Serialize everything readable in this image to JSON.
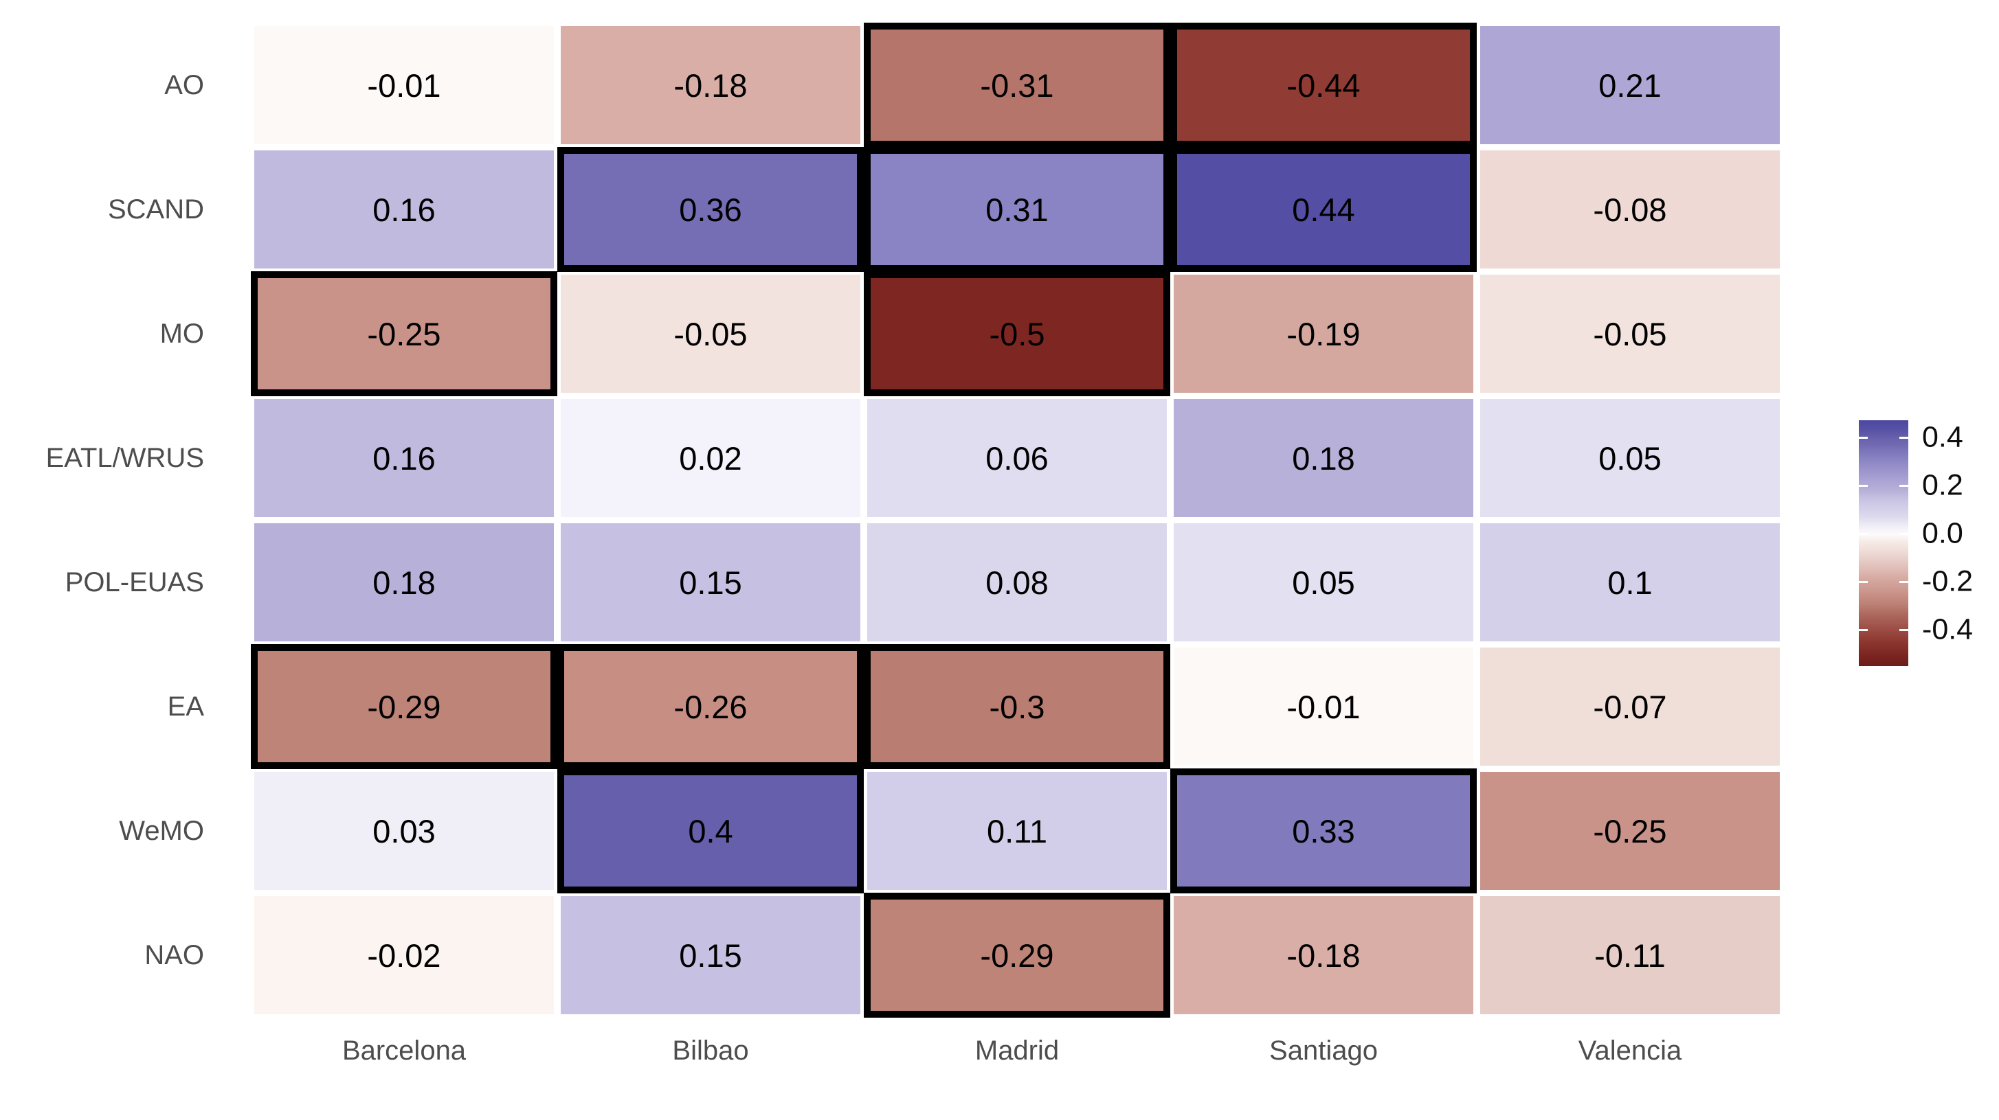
{
  "chart_data": {
    "type": "heatmap",
    "title": "",
    "xlabel": "",
    "ylabel": "",
    "grid": false,
    "legend_position": "right",
    "rows": [
      "AO",
      "SCAND",
      "MO",
      "EATL/WRUS",
      "POL-EUAS",
      "EA",
      "WeMO",
      "NAO"
    ],
    "columns": [
      "Barcelona",
      "Bilbao",
      "Madrid",
      "Santiago",
      "Valencia"
    ],
    "values": [
      [
        -0.01,
        -0.18,
        -0.31,
        -0.44,
        0.21
      ],
      [
        0.16,
        0.36,
        0.31,
        0.44,
        -0.08
      ],
      [
        -0.25,
        -0.05,
        -0.5,
        -0.19,
        -0.05
      ],
      [
        0.16,
        0.02,
        0.06,
        0.18,
        0.05
      ],
      [
        0.18,
        0.15,
        0.08,
        0.05,
        0.1
      ],
      [
        -0.29,
        -0.26,
        -0.3,
        -0.01,
        -0.07
      ],
      [
        0.03,
        0.4,
        0.11,
        0.33,
        -0.25
      ],
      [
        -0.02,
        0.15,
        -0.29,
        -0.18,
        -0.11
      ]
    ],
    "significant_cells": [
      [
        0,
        0,
        1,
        1,
        0
      ],
      [
        0,
        1,
        1,
        1,
        0
      ],
      [
        1,
        0,
        1,
        0,
        0
      ],
      [
        0,
        0,
        0,
        0,
        0
      ],
      [
        0,
        0,
        0,
        0,
        0
      ],
      [
        1,
        1,
        1,
        0,
        0
      ],
      [
        0,
        1,
        0,
        1,
        0
      ],
      [
        0,
        0,
        1,
        0,
        0
      ]
    ],
    "significance_outline_color": "#000000",
    "value_text_color": "#000000",
    "axis_text_color": "#4d4d4d",
    "legend": {
      "tick_labels": [
        "0.4",
        "0.2",
        "0.0",
        "-0.2",
        "-0.4"
      ],
      "tick_values": [
        0.4,
        0.2,
        0.0,
        -0.2,
        -0.4
      ],
      "bar_top_value": 0.4714,
      "bar_bottom_value": -0.5514
    },
    "color_scale": [
      [
        -0.5514,
        "#6C1D1A"
      ],
      [
        -0.5,
        "#7E2622"
      ],
      [
        -0.44,
        "#903B33"
      ],
      [
        -0.31,
        "#B5756A"
      ],
      [
        -0.29,
        "#BF8478"
      ],
      [
        -0.26,
        "#C78E83"
      ],
      [
        -0.25,
        "#C9938A"
      ],
      [
        -0.19,
        "#D5A89F"
      ],
      [
        -0.18,
        "#D9AEA7"
      ],
      [
        -0.11,
        "#E7CDC7"
      ],
      [
        -0.08,
        "#EFD9D4"
      ],
      [
        -0.07,
        "#F0DED9"
      ],
      [
        -0.05,
        "#F2E3DE"
      ],
      [
        -0.02,
        "#FBF4F1"
      ],
      [
        -0.01,
        "#FDF9F7"
      ],
      [
        0.0,
        "#FDFCFE"
      ],
      [
        0.02,
        "#F4F2FA"
      ],
      [
        0.03,
        "#F0EFF7"
      ],
      [
        0.05,
        "#E3E0F1"
      ],
      [
        0.06,
        "#E0DDF0"
      ],
      [
        0.08,
        "#DAD6EC"
      ],
      [
        0.1,
        "#D5D0EA"
      ],
      [
        0.11,
        "#D2CDE9"
      ],
      [
        0.15,
        "#C6C1E2"
      ],
      [
        0.16,
        "#C0BADE"
      ],
      [
        0.18,
        "#B7B0D9"
      ],
      [
        0.21,
        "#AEA7D6"
      ],
      [
        0.31,
        "#8B84C4"
      ],
      [
        0.33,
        "#817BBE"
      ],
      [
        0.36,
        "#756EB4"
      ],
      [
        0.4,
        "#665FAB"
      ],
      [
        0.44,
        "#544FA4"
      ],
      [
        0.4714,
        "#4C48A0"
      ]
    ]
  }
}
